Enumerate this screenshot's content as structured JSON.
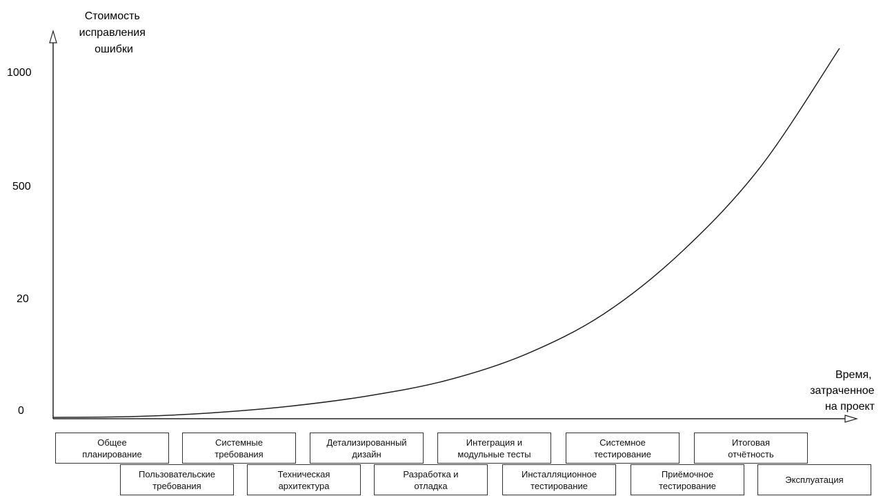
{
  "chart_data": {
    "type": "line",
    "ylabel": [
      "Стоимость",
      "исправления",
      "ошибки"
    ],
    "xlabel": [
      "Время,",
      "затраченное",
      "на проект"
    ],
    "y_ticks": [
      "1000",
      "500",
      "20",
      "0"
    ],
    "curve_points": [
      {
        "x": 0,
        "y": 0
      },
      {
        "x": 0.1,
        "y": 0.002
      },
      {
        "x": 0.2,
        "y": 0.012
      },
      {
        "x": 0.3,
        "y": 0.03
      },
      {
        "x": 0.4,
        "y": 0.058
      },
      {
        "x": 0.5,
        "y": 0.1
      },
      {
        "x": 0.6,
        "y": 0.17
      },
      {
        "x": 0.7,
        "y": 0.28
      },
      {
        "x": 0.8,
        "y": 0.45
      },
      {
        "x": 0.9,
        "y": 0.68
      },
      {
        "x": 1.0,
        "y": 1.0
      }
    ],
    "stages_top": [
      [
        "Общее",
        "планирование"
      ],
      [
        "Системные",
        "требования"
      ],
      [
        "Детализированный",
        "дизайн"
      ],
      [
        "Интеграция и",
        "модульные тесты"
      ],
      [
        "Системное",
        "тестирование"
      ],
      [
        "Итоговая",
        "отчётность"
      ]
    ],
    "stages_bottom": [
      [
        "Пользовательские",
        "требования"
      ],
      [
        "Техническая",
        "архитектура"
      ],
      [
        "Разработка и",
        "отладка"
      ],
      [
        "Инсталляционное",
        "тестирование"
      ],
      [
        "Приёмочное",
        "тестирование"
      ],
      [
        "Эксплуатация"
      ]
    ]
  }
}
